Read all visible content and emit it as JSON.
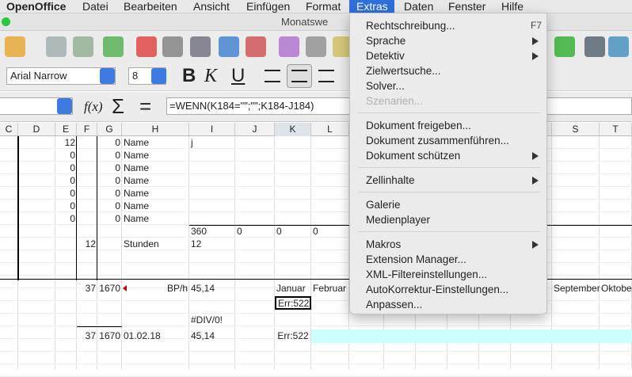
{
  "menubar": {
    "items": [
      "OpenOffice",
      "Datei",
      "Bearbeiten",
      "Ansicht",
      "Einfügen",
      "Format",
      "Extras",
      "Daten",
      "Fenster",
      "Hilfe"
    ]
  },
  "window": {
    "title": "Monatswe"
  },
  "format_toolbar": {
    "font": "Arial Narrow",
    "size": "8",
    "buttons": [
      "B",
      "K",
      "U"
    ]
  },
  "formula_bar": {
    "function_button": "f(x)",
    "sum_button": "Σ",
    "equals_button": "=",
    "formula": "=WENN(K184=\"\";\"\";K184-J184)"
  },
  "sheet": {
    "columns": [
      "C",
      "D",
      "E",
      "F",
      "G",
      "H",
      "I",
      "J",
      "K",
      "L",
      null,
      null,
      null,
      null,
      null,
      null,
      "S",
      "T"
    ],
    "rows": [
      [
        null,
        null,
        "12",
        null,
        "0",
        "Name",
        "j",
        null,
        null,
        null,
        null,
        null,
        null,
        null,
        null,
        null,
        null,
        null
      ],
      [
        null,
        null,
        "0",
        null,
        "0",
        "Name",
        null,
        null,
        null,
        null,
        null,
        null,
        null,
        null,
        null,
        null,
        null,
        null
      ],
      [
        null,
        null,
        "0",
        null,
        "0",
        "Name",
        null,
        null,
        null,
        null,
        null,
        null,
        null,
        null,
        null,
        null,
        null,
        null
      ],
      [
        null,
        null,
        "0",
        null,
        "0",
        "Name",
        null,
        null,
        null,
        null,
        null,
        null,
        null,
        null,
        null,
        null,
        null,
        null
      ],
      [
        null,
        null,
        "0",
        null,
        "0",
        "Name",
        null,
        null,
        null,
        null,
        null,
        null,
        null,
        null,
        null,
        null,
        null,
        null
      ],
      [
        null,
        null,
        "0",
        null,
        "0",
        "Name",
        null,
        null,
        null,
        null,
        null,
        null,
        null,
        null,
        null,
        null,
        null,
        null
      ],
      [
        null,
        null,
        "0",
        null,
        "0",
        "Name",
        null,
        null,
        null,
        null,
        null,
        null,
        null,
        null,
        null,
        null,
        null,
        null
      ],
      [
        null,
        null,
        null,
        null,
        null,
        null,
        "360",
        "0",
        "0",
        "0",
        null,
        null,
        null,
        null,
        null,
        null,
        null,
        null
      ],
      [
        null,
        null,
        null,
        "12",
        null,
        "Stunden",
        "12",
        null,
        null,
        null,
        null,
        null,
        null,
        null,
        null,
        null,
        null,
        null
      ],
      [
        null,
        null,
        null,
        "37",
        "1670",
        "BP/h",
        "45,14",
        null,
        "Januar",
        "Februar",
        null,
        null,
        null,
        null,
        null,
        null,
        "September",
        "Oktober"
      ],
      [
        null,
        null,
        null,
        null,
        null,
        null,
        null,
        null,
        "Err:522",
        null,
        null,
        null,
        null,
        null,
        null,
        null,
        null,
        null
      ],
      [
        null,
        null,
        null,
        null,
        null,
        null,
        "#DIV/0!",
        null,
        null,
        null,
        null,
        null,
        null,
        null,
        null,
        null,
        null,
        null
      ],
      [
        null,
        null,
        null,
        "37",
        "1670",
        "01.02.18",
        "45,14",
        null,
        "Err:522",
        null,
        null,
        null,
        null,
        null,
        null,
        null,
        null,
        null
      ]
    ]
  },
  "extras_menu": {
    "groups": [
      [
        {
          "label": "Rechtschreibung...",
          "shortcut": "F7"
        },
        {
          "label": "Sprache",
          "submenu": true
        },
        {
          "label": "Detektiv",
          "submenu": true
        },
        {
          "label": "Zielwertsuche..."
        },
        {
          "label": "Solver..."
        },
        {
          "label": "Szenarien...",
          "disabled": true
        }
      ],
      [
        {
          "label": "Dokument freigeben..."
        },
        {
          "label": "Dokument zusammenführen..."
        },
        {
          "label": "Dokument schützen",
          "submenu": true
        }
      ],
      [
        {
          "label": "Zellinhalte",
          "submenu": true
        }
      ],
      [
        {
          "label": "Galerie"
        },
        {
          "label": "Medienplayer"
        }
      ],
      [
        {
          "label": "Makros",
          "submenu": true
        },
        {
          "label": "Extension Manager..."
        },
        {
          "label": "XML-Filtereinstellungen..."
        },
        {
          "label": "AutoKorrektur-Einstellungen..."
        },
        {
          "label": "Anpassen..."
        }
      ]
    ]
  }
}
